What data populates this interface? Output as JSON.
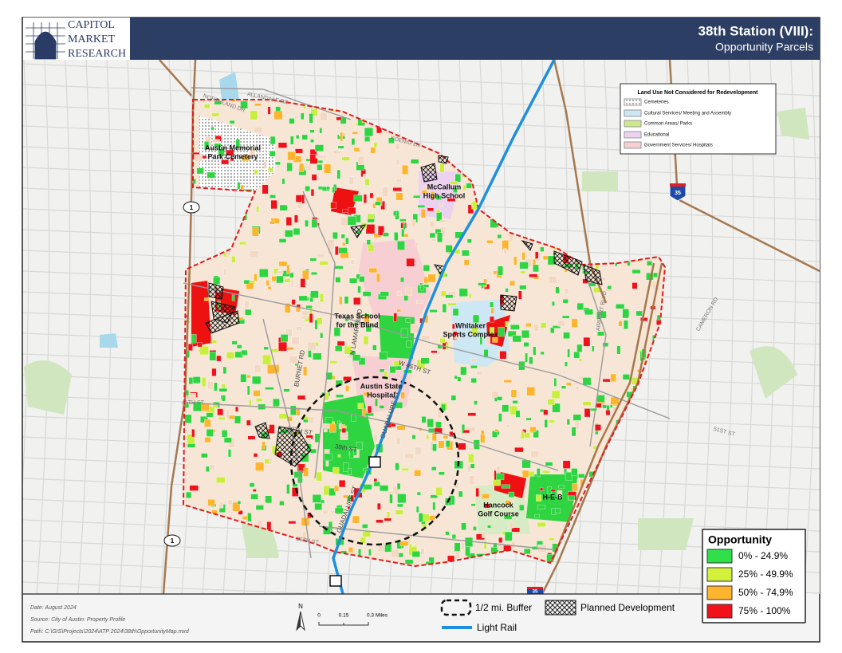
{
  "logo": {
    "lines": [
      "CAPITOL",
      "MARKET",
      "RESEARCH"
    ]
  },
  "header": {
    "title": "38th Station (VIII):",
    "subtitle": "Opportunity Parcels"
  },
  "land_use_legend": {
    "title": "Land Use Not Considered for Redevelopment",
    "items": [
      "Cemeteries",
      "Cultural Services/ Meeting and Assembly",
      "Common Areas/ Parks",
      "Educational",
      "Government Services/ Hospitals"
    ]
  },
  "places": [
    {
      "lines": [
        "Austin Memorial",
        "Park Cemetery"
      ]
    },
    {
      "lines": [
        "McCallum",
        "High School"
      ]
    },
    {
      "lines": [
        "Texas School",
        "for the Blind"
      ]
    },
    {
      "lines": [
        "Whitaker",
        "Sports Complex"
      ]
    },
    {
      "lines": [
        "Austin State",
        "Hospital"
      ]
    },
    {
      "lines": [
        "Hancock",
        "Golf Course"
      ]
    },
    {
      "lines": [
        "H-E-B"
      ]
    }
  ],
  "streets": [
    "NORTHLAND DR",
    "ALLANDALE RD",
    "KOENIG LN",
    "BURNET RD",
    "N LAMAR BLVD",
    "W 45TH ST",
    "GUADALUPE ST",
    "38TH ST",
    "38th ST",
    "GUADALUPE ST",
    "35TH ST",
    "51ST ST",
    "CAMERON RD",
    "AIRPORT BLVD",
    "45TH ST"
  ],
  "shields": [
    "1",
    "1",
    "35",
    "35"
  ],
  "opportunity_legend": {
    "title": "Opportunity",
    "items": [
      "0% - 24.9%",
      "25% - 49.9%",
      "50% - 74,9%",
      "75% - 100%"
    ]
  },
  "map_legend": {
    "buffer": "1/2 mi. Buffer",
    "planned": "Planned Development",
    "rail": "Light Rail"
  },
  "scale_bar": {
    "north": "N",
    "labels": [
      "0",
      "0.15",
      "0.3 Miles"
    ]
  },
  "footer": {
    "date": "Date: August 2024",
    "source": "Source: City of Austin: Property Profile",
    "path": "Path: C:\\GIS\\Projects\\2024\\ATP 2024\\38th\\OpportunityMap.mxd"
  }
}
